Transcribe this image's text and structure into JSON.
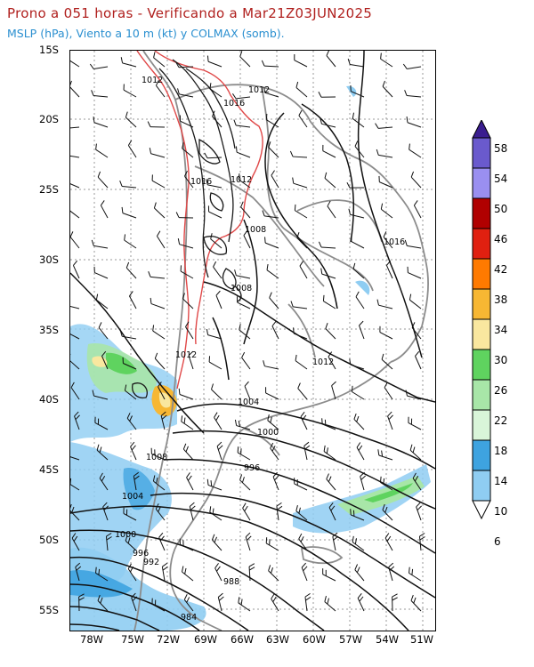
{
  "header": {
    "title": "Prono a 051 horas - Verificando a Mar21Z03JUN2025",
    "subtitle": "MSLP (hPa), Viento a 10 m (kt) y COLMAX (somb)."
  },
  "axes": {
    "lat_labels": [
      "15S",
      "20S",
      "25S",
      "30S",
      "35S",
      "40S",
      "45S",
      "50S",
      "55S"
    ],
    "lon_labels": [
      "78W",
      "75W",
      "72W",
      "69W",
      "66W",
      "63W",
      "60W",
      "57W",
      "54W",
      "51W"
    ]
  },
  "isobars": {
    "labels": [
      "1012",
      "1012",
      "1016",
      "1016",
      "1012",
      "1008",
      "1016",
      "1008",
      "1012",
      "1012",
      "1004",
      "1000",
      "996",
      "1008",
      "1004",
      "1000",
      "996",
      "992",
      "988",
      "984"
    ]
  },
  "colorbar": {
    "labels": [
      "58",
      "54",
      "50",
      "46",
      "42",
      "38",
      "34",
      "30",
      "26",
      "22",
      "18",
      "14",
      "10",
      "6"
    ],
    "colors": [
      "#3a1d8f",
      "#6a5acd",
      "#9a8ff0",
      "#b00000",
      "#e02010",
      "#ff7a00",
      "#f7b733",
      "#f9e79f",
      "#5fd35f",
      "#a8e6a8",
      "#d9f5d9",
      "#3ea3e0",
      "#8fcdf2",
      "#cff3fb"
    ]
  }
}
